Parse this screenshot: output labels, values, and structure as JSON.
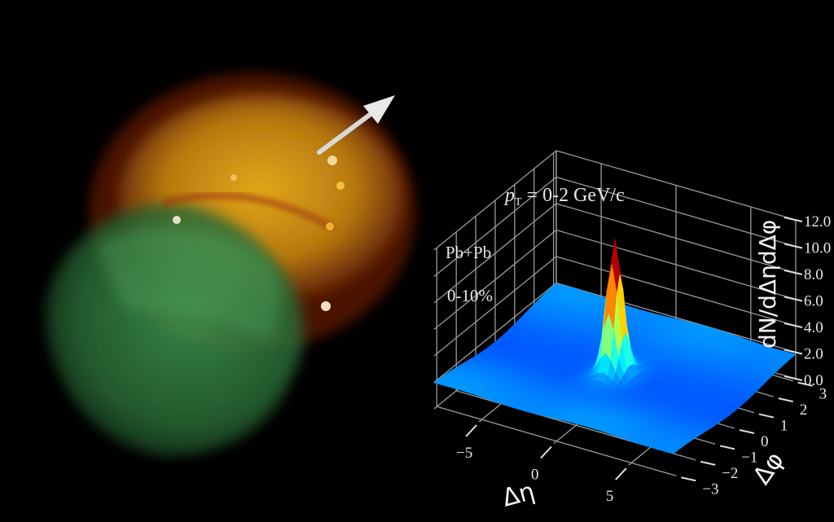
{
  "scene": {
    "blob_colors": {
      "outer": "#8a2a08",
      "core": "#d9a010",
      "green": "#3fa050"
    },
    "arrow_color": "#e0e0e0"
  },
  "chart_data": {
    "type": "surface",
    "annotations": {
      "momentum": "pT = 0-2 GeV/c",
      "momentum_symbol": "p",
      "momentum_sub": "T",
      "momentum_rest": " = 0-2 GeV/c",
      "system": "Pb+Pb",
      "centrality": "0-10%"
    },
    "xlabel": "Δη",
    "ylabel": "Δφ",
    "zlabel": "dN/dΔηdΔφ",
    "xticks": [
      "−5",
      "0",
      "5"
    ],
    "xtick_values": [
      -5,
      0,
      5
    ],
    "yticks": [
      "−3",
      "−2",
      "−1",
      "0",
      "1",
      "2",
      "3"
    ],
    "ytick_values": [
      -3,
      -2,
      -1,
      0,
      1,
      2,
      3
    ],
    "zticks": [
      "0.0",
      "2.0",
      "4.0",
      "6.0",
      "8.0",
      "10.0",
      "12.0"
    ],
    "ztick_values": [
      0,
      2,
      4,
      6,
      8,
      10,
      12
    ],
    "xlim": [
      -8,
      8
    ],
    "ylim": [
      -3.14,
      3.14
    ],
    "zlim": [
      0,
      12
    ],
    "grid": true,
    "colormap": "jet",
    "surface": {
      "baseline": 1.3,
      "near_side_peak": {
        "d_eta": 0,
        "d_phi": 0,
        "value": 10.5
      },
      "away_side_ridge_amplitude": 0.6
    }
  }
}
